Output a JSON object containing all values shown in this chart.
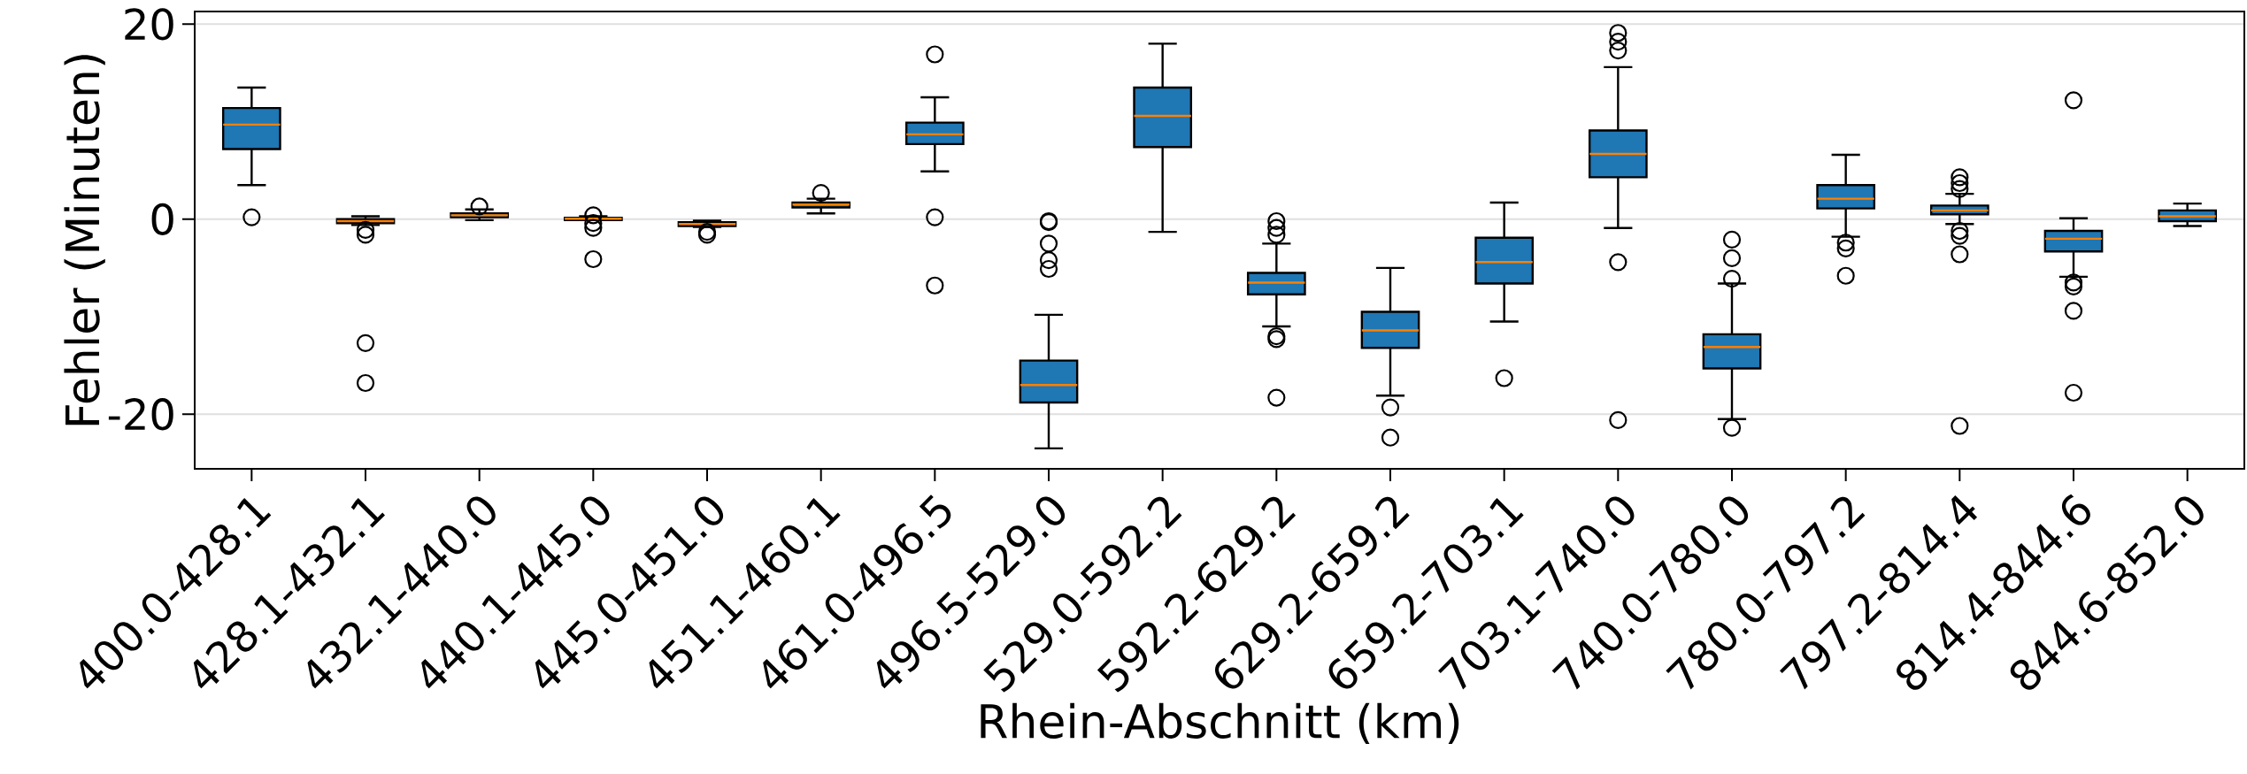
{
  "chart_data": {
    "type": "box",
    "xlabel": "Rhein-Abschnitt (km)",
    "ylabel": "Fehler (Minuten)",
    "categories": [
      "400.0-428.1",
      "428.1-432.1",
      "432.1-440.0",
      "440.1-445.0",
      "445.0-451.0",
      "451.1-460.1",
      "461.0-496.5",
      "496.5-529.0",
      "529.0-592.2",
      "592.2-629.2",
      "629.2-659.2",
      "659.2-703.1",
      "703.1-740.0",
      "740.0-780.0",
      "780.0-797.2",
      "797.2-814.4",
      "814.4-844.6",
      "844.6-852.0"
    ],
    "color": "#1f77b4",
    "grid": "y",
    "ylim": [
      -25.6,
      21.3
    ],
    "yticks": [
      -20,
      0,
      20
    ],
    "boxes": [
      {
        "low": 3.5,
        "q1": 7.2,
        "median": 9.7,
        "q3": 11.4,
        "high": 13.5,
        "outliers": [
          0.2
        ]
      },
      {
        "low": -0.6,
        "q1": -0.4,
        "median": -0.2,
        "q3": 0,
        "high": 0.3,
        "outliers": [
          -1.1,
          -1.6,
          -12.7,
          -16.8
        ]
      },
      {
        "low": -0.1,
        "q1": 0.2,
        "median": 0.4,
        "q3": 0.6,
        "high": 1.0,
        "outliers": [
          1.3
        ]
      },
      {
        "low": -0.1,
        "q1": -0.1,
        "median": 0.05,
        "q3": 0.15,
        "high": 0.3,
        "outliers": [
          0.4,
          -0.4,
          -0.9,
          -4.1
        ]
      },
      {
        "low": -0.8,
        "q1": -0.7,
        "median": -0.5,
        "q3": -0.3,
        "high": -0.15,
        "outliers": [
          -1.3,
          -1.6
        ]
      },
      {
        "low": 0.6,
        "q1": 1.2,
        "median": 1.5,
        "q3": 1.7,
        "high": 2.1,
        "outliers": [
          2.7
        ]
      },
      {
        "low": 4.9,
        "q1": 7.7,
        "median": 8.7,
        "q3": 9.9,
        "high": 12.5,
        "outliers": [
          16.9,
          0.2,
          -6.8
        ]
      },
      {
        "low": -23.5,
        "q1": -18.8,
        "median": -17.0,
        "q3": -14.5,
        "high": -9.8,
        "outliers": [
          -0.2,
          -0.3,
          -2.5,
          -4.2,
          -5.1
        ]
      },
      {
        "low": -1.3,
        "q1": 7.4,
        "median": 10.6,
        "q3": 13.5,
        "high": 18.0
      },
      {
        "low": -11.0,
        "q1": -7.7,
        "median": -6.5,
        "q3": -5.5,
        "high": -2.5,
        "outliers": [
          -0.2,
          -0.9,
          -1.6,
          -12.0,
          -12.3,
          -18.3
        ]
      },
      {
        "low": -18.1,
        "q1": -13.2,
        "median": -11.4,
        "q3": -9.5,
        "high": -5.0,
        "outliers": [
          -19.3,
          -22.4
        ]
      },
      {
        "low": -10.5,
        "q1": -6.6,
        "median": -4.4,
        "q3": -1.9,
        "high": 1.7,
        "outliers": [
          -16.3
        ]
      },
      {
        "low": -0.9,
        "q1": 4.3,
        "median": 6.7,
        "q3": 9.1,
        "high": 15.6,
        "outliers": [
          19.1,
          18.2,
          17.3,
          -4.4,
          -20.6
        ]
      },
      {
        "low": -20.5,
        "q1": -15.3,
        "median": -13.1,
        "q3": -11.8,
        "high": -6.6,
        "outliers": [
          -2.1,
          -4.0,
          -6.1,
          -21.4
        ]
      },
      {
        "low": -1.8,
        "q1": 1.1,
        "median": 2.1,
        "q3": 3.5,
        "high": 6.6,
        "outliers": [
          -2.4,
          -3.0,
          -5.8
        ]
      },
      {
        "low": -0.5,
        "q1": 0.5,
        "median": 0.9,
        "q3": 1.4,
        "high": 2.6,
        "outliers": [
          4.3,
          3.7,
          3.1,
          -1.2,
          -1.7,
          -3.6,
          -21.2
        ]
      },
      {
        "low": -5.9,
        "q1": -3.3,
        "median": -2.0,
        "q3": -1.2,
        "high": 0.1,
        "outliers": [
          12.2,
          -6.5,
          -6.9,
          -9.4,
          -17.8
        ]
      },
      {
        "low": -0.7,
        "q1": -0.2,
        "median": 0.3,
        "q3": 0.9,
        "high": 1.6
      }
    ]
  }
}
